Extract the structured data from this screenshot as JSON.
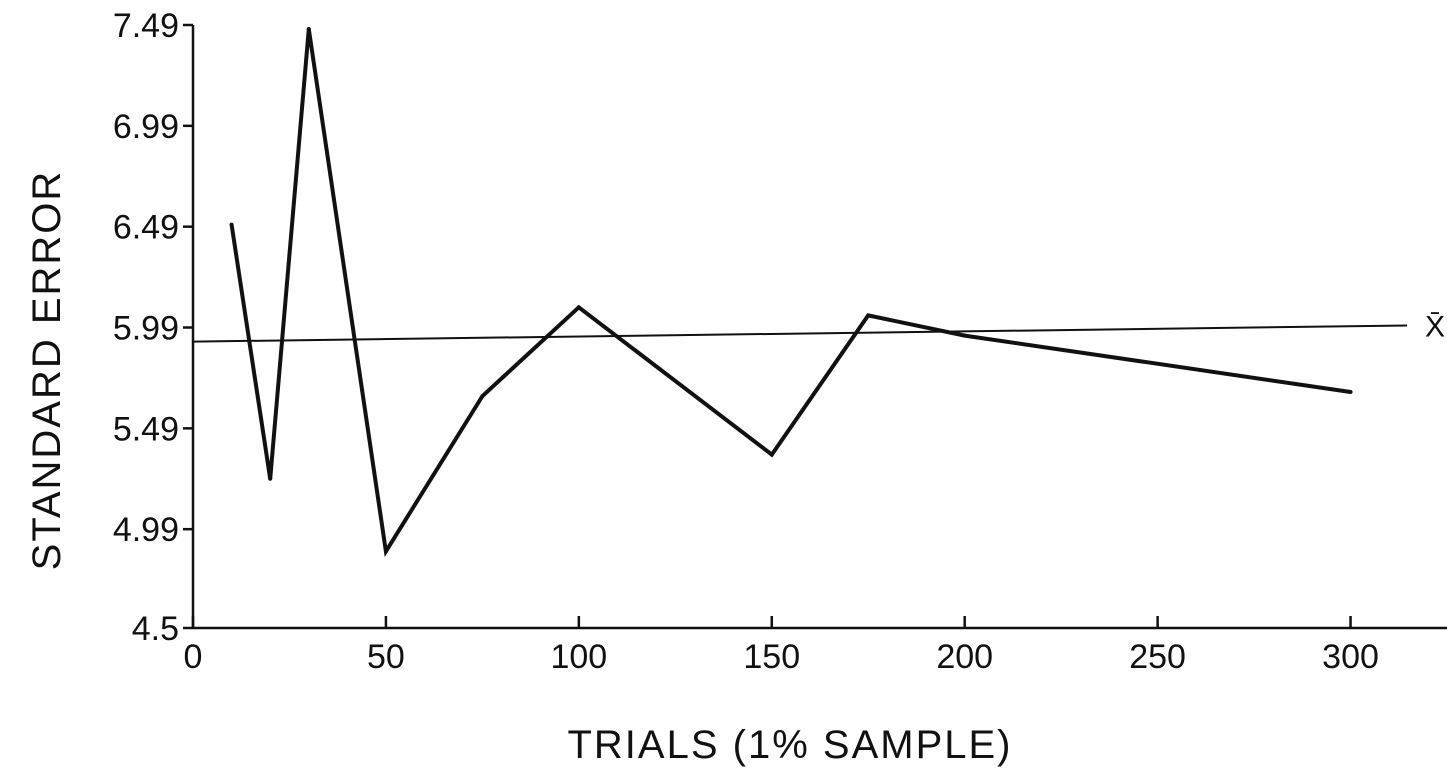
{
  "chart_data": {
    "type": "line",
    "title": "",
    "xlabel": "TRIALS (1% SAMPLE)",
    "ylabel": "STANDARD  ERROR",
    "xlim": [
      0,
      325
    ],
    "ylim": [
      4.5,
      7.49
    ],
    "x_ticks": [
      0,
      50,
      100,
      150,
      200,
      250,
      300
    ],
    "x_tick_labels": [
      "0",
      "50",
      "100",
      "150",
      "200",
      "250",
      "300"
    ],
    "y_ticks": [
      4.5,
      4.99,
      5.49,
      5.99,
      6.49,
      6.99,
      7.49
    ],
    "y_tick_labels": [
      "4.5",
      "4.99",
      "5.49",
      "5.99",
      "6.49",
      "6.99",
      "7.49"
    ],
    "grid": false,
    "series": [
      {
        "x": [
          10,
          20,
          30,
          50,
          75,
          100,
          150,
          175,
          200,
          300
        ],
        "y": [
          6.5,
          5.24,
          7.47,
          4.88,
          5.65,
          6.09,
          5.36,
          6.05,
          5.95,
          5.67
        ],
        "color": "#111111"
      }
    ],
    "mean_line": {
      "label": "X̄",
      "y_start": 5.92,
      "y_end": 6.0,
      "color": "#111111"
    }
  }
}
